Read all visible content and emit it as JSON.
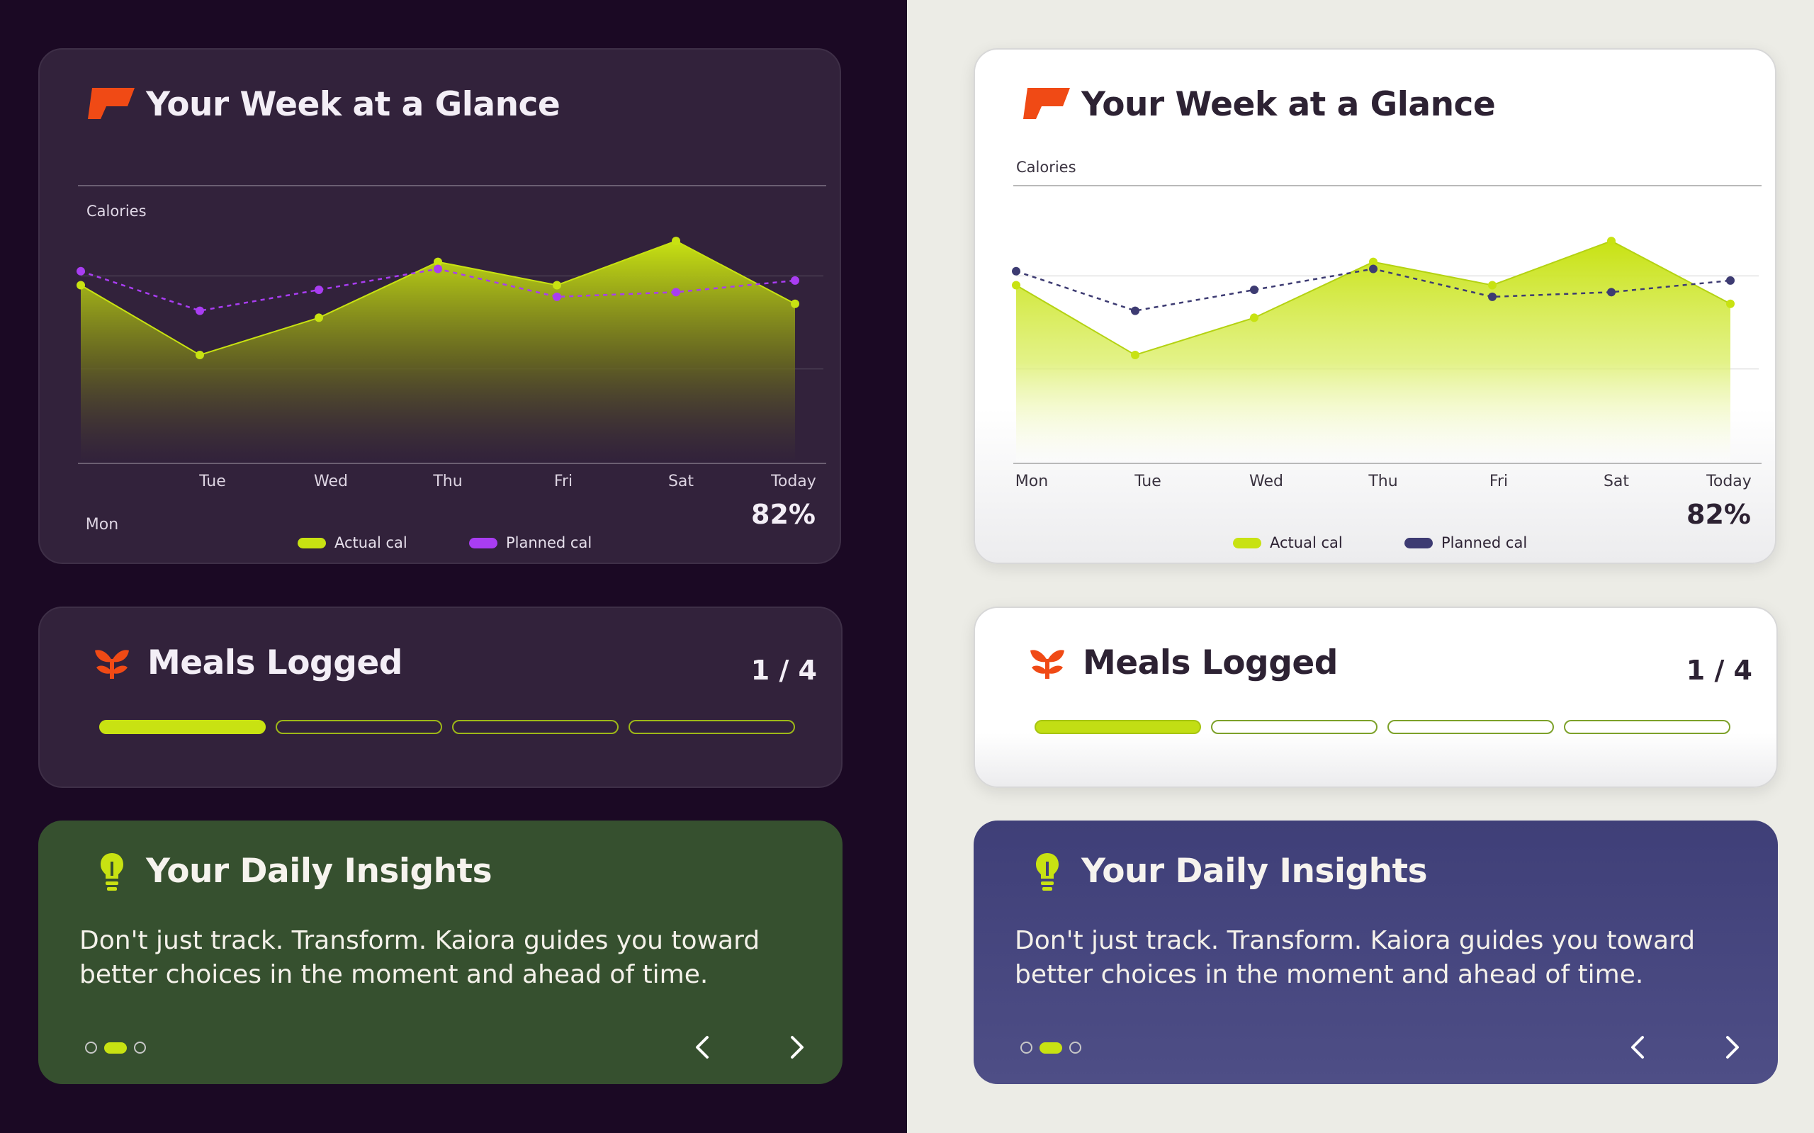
{
  "panels": [
    {
      "theme": "dark",
      "week": {
        "title": "Your Week at a Glance",
        "percent": "82%",
        "colors": {
          "actual": "#c8e212",
          "planned": "#a93df2"
        }
      },
      "meals": {
        "title": "Meals Logged",
        "count": "1 / 4"
      },
      "insights": {
        "title": "Your Daily Insights",
        "body": "Don't just track. Transform. Kaiora guides you toward better choices in the moment and ahead of time.",
        "colors": {
          "background": "#36502f"
        }
      }
    },
    {
      "theme": "light",
      "week": {
        "title": "Your Week at a Glance",
        "percent": "82%",
        "colors": {
          "actual": "#c8e212",
          "planned": "#3d3b72"
        }
      },
      "meals": {
        "title": "Meals Logged",
        "count": "1 / 4"
      },
      "insights": {
        "title": "Your Daily Insights",
        "body": "Don't just track. Transform. Kaiora guides you toward better choices in the moment and ahead of time.",
        "colors": {
          "background": "#45447c"
        }
      }
    }
  ],
  "chart_data": {
    "type": "area",
    "ylabel": "Calories",
    "categories": [
      "Mon",
      "Tue",
      "Wed",
      "Thu",
      "Fri",
      "Sat",
      "Today"
    ],
    "series": [
      {
        "name": "Actual cal",
        "values": [
          76,
          46,
          62,
          86,
          76,
          95,
          68
        ]
      },
      {
        "name": "Planned cal",
        "values": [
          82,
          65,
          74,
          83,
          71,
          73,
          78
        ]
      }
    ],
    "ylim": [
      0,
      120
    ],
    "legend": "bottom",
    "grid": true
  },
  "meals_progress": {
    "logged": 1,
    "total": 4
  },
  "insights_nav": {
    "pages": 3,
    "active": 2
  },
  "icons": {
    "week": "flag-logo-icon",
    "meals": "sprout-icon",
    "insights": "lightbulb-icon",
    "prev": "chevron-left-icon",
    "next": "chevron-right-icon"
  },
  "brand_color": "#f04a15"
}
